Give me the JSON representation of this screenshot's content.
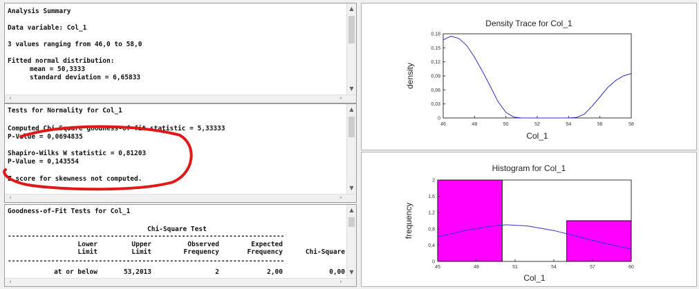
{
  "summary": {
    "title": "Analysis Summary",
    "data_variable": "Data variable: Col_1",
    "range_text": "3 values ranging from 46,0 to 58,0",
    "fitted_heading": "Fitted normal distribution:",
    "mean_text": "mean = 50,3333",
    "sd_text": "standard deviation = 6,65833"
  },
  "normality": {
    "title": "Tests for Normality for Col_1",
    "chi_square_text": "Computed Chi-Square goodness-of-fit statistic = 5,33333",
    "chi_p_text": "P-Value = 0,0694835",
    "shapiro_text": "Shapiro-Wilks W statistic = 0,81203",
    "shapiro_p_text": "P-Value = 0,143554",
    "skew_text": "Z score for skewness not computed."
  },
  "goodness": {
    "title": "Goodness-of-Fit Tests for Col_1",
    "subtitle": "Chi-Square Test",
    "separator": "----------------------------------------------------------------------",
    "headers_top": [
      "Lower",
      "Upper",
      "Observed",
      "Expected",
      ""
    ],
    "headers_bottom": [
      "Limit",
      "Limit",
      "Frequency",
      "Frequency",
      "Chi-Square"
    ],
    "row": [
      "at or below",
      "53,2013",
      "2",
      "2,00",
      "0,00"
    ]
  },
  "density_chart": {
    "title": "Density Trace for Col_1",
    "xlabel": "Col_1",
    "ylabel": "density",
    "x_ticks": [
      "46",
      "48",
      "50",
      "52",
      "54",
      "56",
      "58"
    ],
    "y_ticks": [
      "0",
      "0,03",
      "0,06",
      "0,09",
      "0,12",
      "0,15",
      "0,18"
    ],
    "line_color": "#2b2bc8"
  },
  "histogram_chart": {
    "title": "Histogram for Col_1",
    "xlabel": "Col_1",
    "ylabel": "frequency",
    "x_ticks": [
      "45",
      "48",
      "51",
      "54",
      "57",
      "60"
    ],
    "y_ticks": [
      "0",
      "0,4",
      "0,8",
      "1,2",
      "1,6",
      "2"
    ],
    "bar_color": "#ff00ff",
    "curve_color": "#3030c8"
  },
  "chart_data": [
    {
      "type": "line",
      "title": "Density Trace for Col_1",
      "xlabel": "Col_1",
      "ylabel": "density",
      "xlim": [
        46,
        58
      ],
      "ylim": [
        0,
        0.18
      ],
      "x": [
        46,
        46.5,
        47,
        47.5,
        48,
        48.5,
        49,
        49.5,
        50,
        50.5,
        51,
        52,
        53,
        54,
        54.5,
        55,
        55.5,
        56,
        56.5,
        57,
        57.5,
        58
      ],
      "y": [
        0.167,
        0.175,
        0.17,
        0.155,
        0.13,
        0.1,
        0.068,
        0.035,
        0.012,
        0.002,
        0,
        0,
        0,
        0,
        0.001,
        0.008,
        0.025,
        0.045,
        0.065,
        0.08,
        0.09,
        0.095
      ]
    },
    {
      "type": "bar",
      "title": "Histogram for Col_1",
      "xlabel": "Col_1",
      "ylabel": "frequency",
      "xlim": [
        45,
        60
      ],
      "ylim": [
        0,
        2
      ],
      "bins": [
        [
          45,
          50
        ],
        [
          50,
          55
        ],
        [
          55,
          60
        ]
      ],
      "values": [
        2,
        0,
        1
      ],
      "overlay_curve": {
        "x": [
          45,
          47,
          49,
          50.3,
          52,
          54,
          56,
          58,
          60
        ],
        "y": [
          0.6,
          0.75,
          0.86,
          0.9,
          0.87,
          0.76,
          0.6,
          0.44,
          0.3
        ]
      }
    }
  ]
}
